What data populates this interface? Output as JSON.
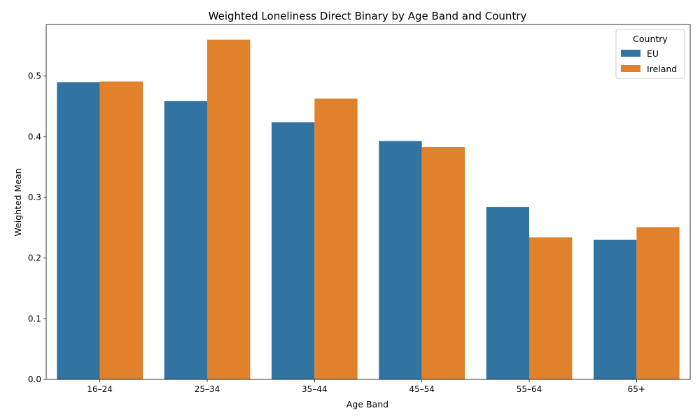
{
  "chart_data": {
    "type": "bar",
    "title": "Weighted Loneliness Direct Binary by Age Band and Country",
    "xlabel": "Age Band",
    "ylabel": "Weighted Mean",
    "categories": [
      "16–24",
      "25–34",
      "35–44",
      "45–54",
      "55–64",
      "65+"
    ],
    "ylim": [
      0,
      0.585
    ],
    "yticks": [
      0.0,
      0.1,
      0.2,
      0.3,
      0.4,
      0.5
    ],
    "ytick_labels": [
      "0.0",
      "0.1",
      "0.2",
      "0.3",
      "0.4",
      "0.5"
    ],
    "grid": false,
    "legend": {
      "title": "Country",
      "placement": "top-right"
    },
    "series": [
      {
        "name": "EU",
        "color": "#3274a1",
        "values": [
          0.49,
          0.459,
          0.424,
          0.393,
          0.284,
          0.23
        ]
      },
      {
        "name": "Ireland",
        "color": "#e1812c",
        "values": [
          0.491,
          0.56,
          0.463,
          0.383,
          0.234,
          0.251
        ]
      }
    ]
  }
}
